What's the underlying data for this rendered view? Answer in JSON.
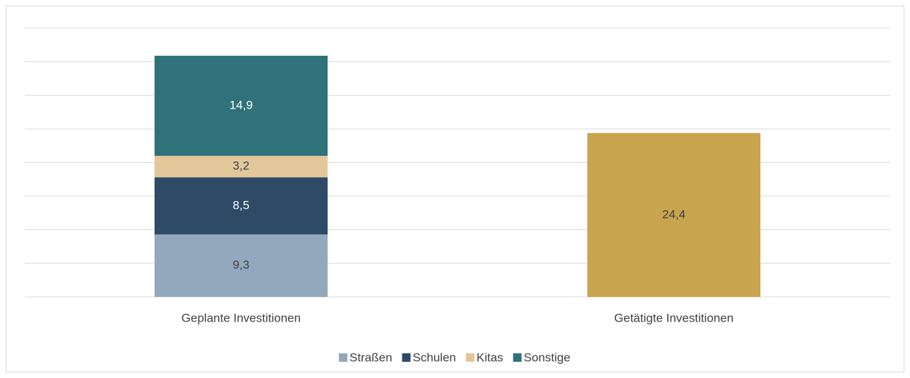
{
  "chart_data": {
    "type": "stacked_bar",
    "categories": [
      "Geplante Investitionen",
      "Getätigte Investitionen"
    ],
    "series": [
      {
        "name": "Straßen",
        "color": "#93a8bd",
        "values": [
          9.3,
          null
        ],
        "value_labels": [
          "9,3",
          null
        ]
      },
      {
        "name": "Schulen",
        "color": "#2e4a67",
        "values": [
          8.5,
          null
        ],
        "value_labels": [
          "8,5",
          null
        ]
      },
      {
        "name": "Kitas",
        "color": "#e2c79b",
        "values": [
          3.2,
          null
        ],
        "value_labels": [
          "3,2",
          null
        ]
      },
      {
        "name": "Sonstige",
        "color": "#30727a",
        "values": [
          14.9,
          null
        ],
        "value_labels": [
          "14,9",
          null
        ]
      },
      {
        "color": "#c9a44f",
        "values": [
          null,
          24.4
        ],
        "value_labels": [
          null,
          "24,4"
        ]
      }
    ],
    "ylim": [
      0,
      40
    ],
    "yticks": [
      0,
      5,
      10,
      15,
      20,
      25,
      30,
      35,
      40
    ],
    "grid": true,
    "legend": "bottom"
  }
}
